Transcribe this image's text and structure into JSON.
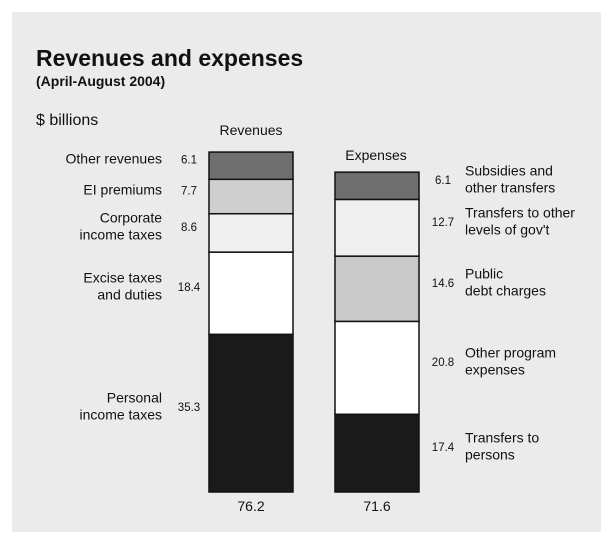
{
  "chart_data": {
    "type": "bar",
    "stacked": true,
    "title": "Revenues and expenses",
    "subtitle": "(April-August 2004)",
    "unit_label": "$ billions",
    "grid": false,
    "legend": "none",
    "bars": [
      {
        "name": "Revenues",
        "total": "76.2",
        "segments": [
          {
            "label": [
              "Personal",
              "income taxes"
            ],
            "value": 35.3,
            "value_text": "35.3",
            "color": "#1a1a1a"
          },
          {
            "label": [
              "Excise taxes",
              "and duties"
            ],
            "value": 18.4,
            "value_text": "18.4",
            "color": "#ffffff"
          },
          {
            "label": [
              "Corporate",
              "income taxes"
            ],
            "value": 8.6,
            "value_text": "8.6",
            "color": "#efefef"
          },
          {
            "label": [
              "EI premiums"
            ],
            "value": 7.7,
            "value_text": "7.7",
            "color": "#cfcfcf"
          },
          {
            "label": [
              "Other revenues"
            ],
            "value": 6.1,
            "value_text": "6.1",
            "color": "#6f6f6f"
          }
        ]
      },
      {
        "name": "Expenses",
        "total": "71.6",
        "segments": [
          {
            "label": [
              "Transfers to",
              "persons"
            ],
            "value": 17.4,
            "value_text": "17.4",
            "color": "#1a1a1a"
          },
          {
            "label": [
              "Other program",
              "expenses"
            ],
            "value": 20.8,
            "value_text": "20.8",
            "color": "#ffffff"
          },
          {
            "label": [
              "Public",
              "debt charges"
            ],
            "value": 14.6,
            "value_text": "14.6",
            "color": "#c9c9c9"
          },
          {
            "label": [
              "Transfers to other",
              "levels of gov't"
            ],
            "value": 12.7,
            "value_text": "12.7",
            "color": "#efefef"
          },
          {
            "label": [
              "Subsidies and",
              "other transfers"
            ],
            "value": 6.1,
            "value_text": "6.1",
            "color": "#6f6f6f"
          }
        ]
      }
    ]
  }
}
